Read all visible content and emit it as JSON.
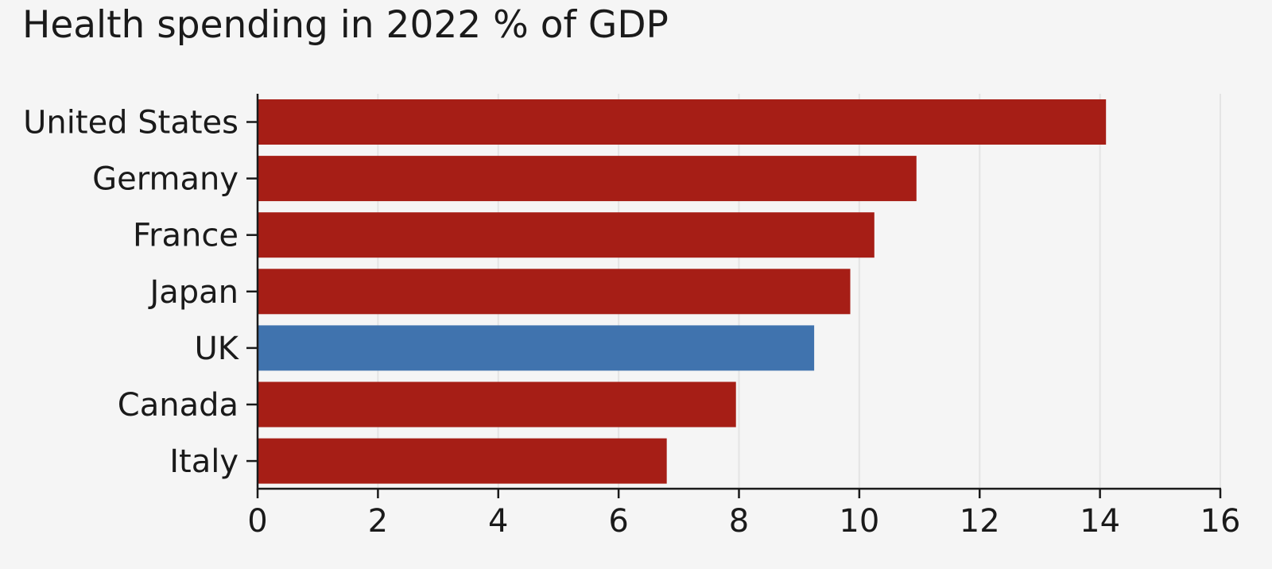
{
  "chart_data": {
    "type": "bar",
    "orientation": "horizontal",
    "title": "Health spending in 2022 % of GDP",
    "categories": [
      "United States",
      "Germany",
      "France",
      "Japan",
      "UK",
      "Canada",
      "Italy"
    ],
    "values": [
      14.1,
      10.95,
      10.25,
      9.85,
      9.25,
      7.95,
      6.8
    ],
    "highlight": "UK",
    "xlim": [
      0,
      16
    ],
    "xticks": [
      "0",
      "2",
      "4",
      "6",
      "8",
      "10",
      "12",
      "14",
      "16"
    ],
    "grid": true,
    "colors": {
      "bar": "#a61e16",
      "highlight": "#4073ae",
      "grid": "#e4e4e4",
      "axis": "#1a1a1a"
    }
  }
}
